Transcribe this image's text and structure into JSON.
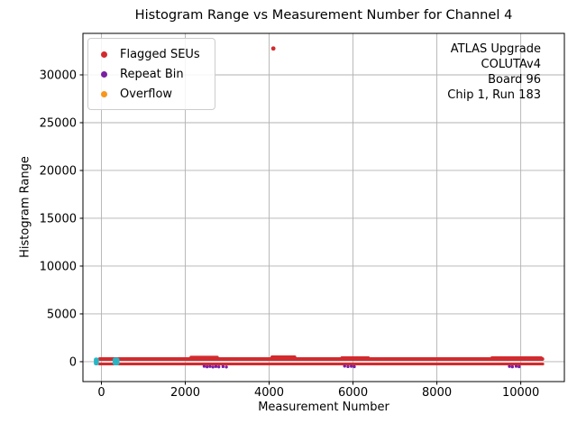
{
  "chart_data": {
    "type": "scatter",
    "title": "Histogram Range vs Measurement Number for Channel 4",
    "xlabel": "Measurement Number",
    "ylabel": "Histogram Range",
    "xlim": [
      -440,
      11040
    ],
    "ylim": [
      -2080,
      34340
    ],
    "xticks": [
      0,
      2000,
      4000,
      6000,
      8000,
      10000
    ],
    "yticks": [
      0,
      5000,
      10000,
      15000,
      20000,
      25000,
      30000
    ],
    "grid": true,
    "grid_color": "#b2b2b2",
    "spine_color": "#000000",
    "legend": {
      "position": "upper-left",
      "items": [
        {
          "label": "Flagged SEUs",
          "color": "#d22b2e"
        },
        {
          "label": "Repeat Bin",
          "color": "#7b1fa2"
        },
        {
          "label": "Overflow",
          "color": "#f8961d"
        }
      ]
    },
    "annotation": {
      "position": "upper-right",
      "lines": [
        "ATLAS Upgrade",
        "COLUTAv4",
        "Board 96",
        "Chip 1, Run 183"
      ]
    },
    "series": [
      {
        "name": "flagged-seus",
        "color": "#d22b2e",
        "dot_radius": 2.4,
        "bands": [
          {
            "x": [
              -80,
              10560
            ],
            "y": [
              94,
              470
            ]
          },
          {
            "x": [
              -80,
              10560
            ],
            "y": [
              -380,
              -95
            ]
          },
          {
            "x": [
              2100,
              2800
            ],
            "y": [
              300,
              620
            ]
          },
          {
            "x": [
              4030,
              4650
            ],
            "y": [
              300,
              660
            ]
          },
          {
            "x": [
              5700,
              6400
            ],
            "y": [
              300,
              560
            ]
          },
          {
            "x": [
              9280,
              10520
            ],
            "y": [
              300,
              560
            ]
          }
        ],
        "points": [
          [
            4100,
            32760
          ]
        ]
      },
      {
        "name": "repeat-bin",
        "color": "#7b1fa2",
        "dot_radius": 1.7,
        "bands": [],
        "points": [
          [
            2450,
            -480
          ],
          [
            2520,
            -530
          ],
          [
            2590,
            -490
          ],
          [
            2660,
            -550
          ],
          [
            2730,
            -500
          ],
          [
            2800,
            -540
          ],
          [
            2900,
            -510
          ],
          [
            2980,
            -550
          ],
          [
            5800,
            -460
          ],
          [
            5880,
            -510
          ],
          [
            5960,
            -480
          ],
          [
            6030,
            -520
          ],
          [
            9730,
            -490
          ],
          [
            9800,
            -530
          ],
          [
            9890,
            -480
          ],
          [
            9960,
            -520
          ]
        ]
      },
      {
        "name": "normal-measurements",
        "color": "#2ab5c5",
        "dot_radius": 2.0,
        "bands": [
          {
            "x": [
              -180,
              -60
            ],
            "y": [
              -380,
              430
            ]
          },
          {
            "x": [
              270,
              430
            ],
            "y": [
              -380,
              430
            ]
          }
        ],
        "points": []
      }
    ]
  }
}
